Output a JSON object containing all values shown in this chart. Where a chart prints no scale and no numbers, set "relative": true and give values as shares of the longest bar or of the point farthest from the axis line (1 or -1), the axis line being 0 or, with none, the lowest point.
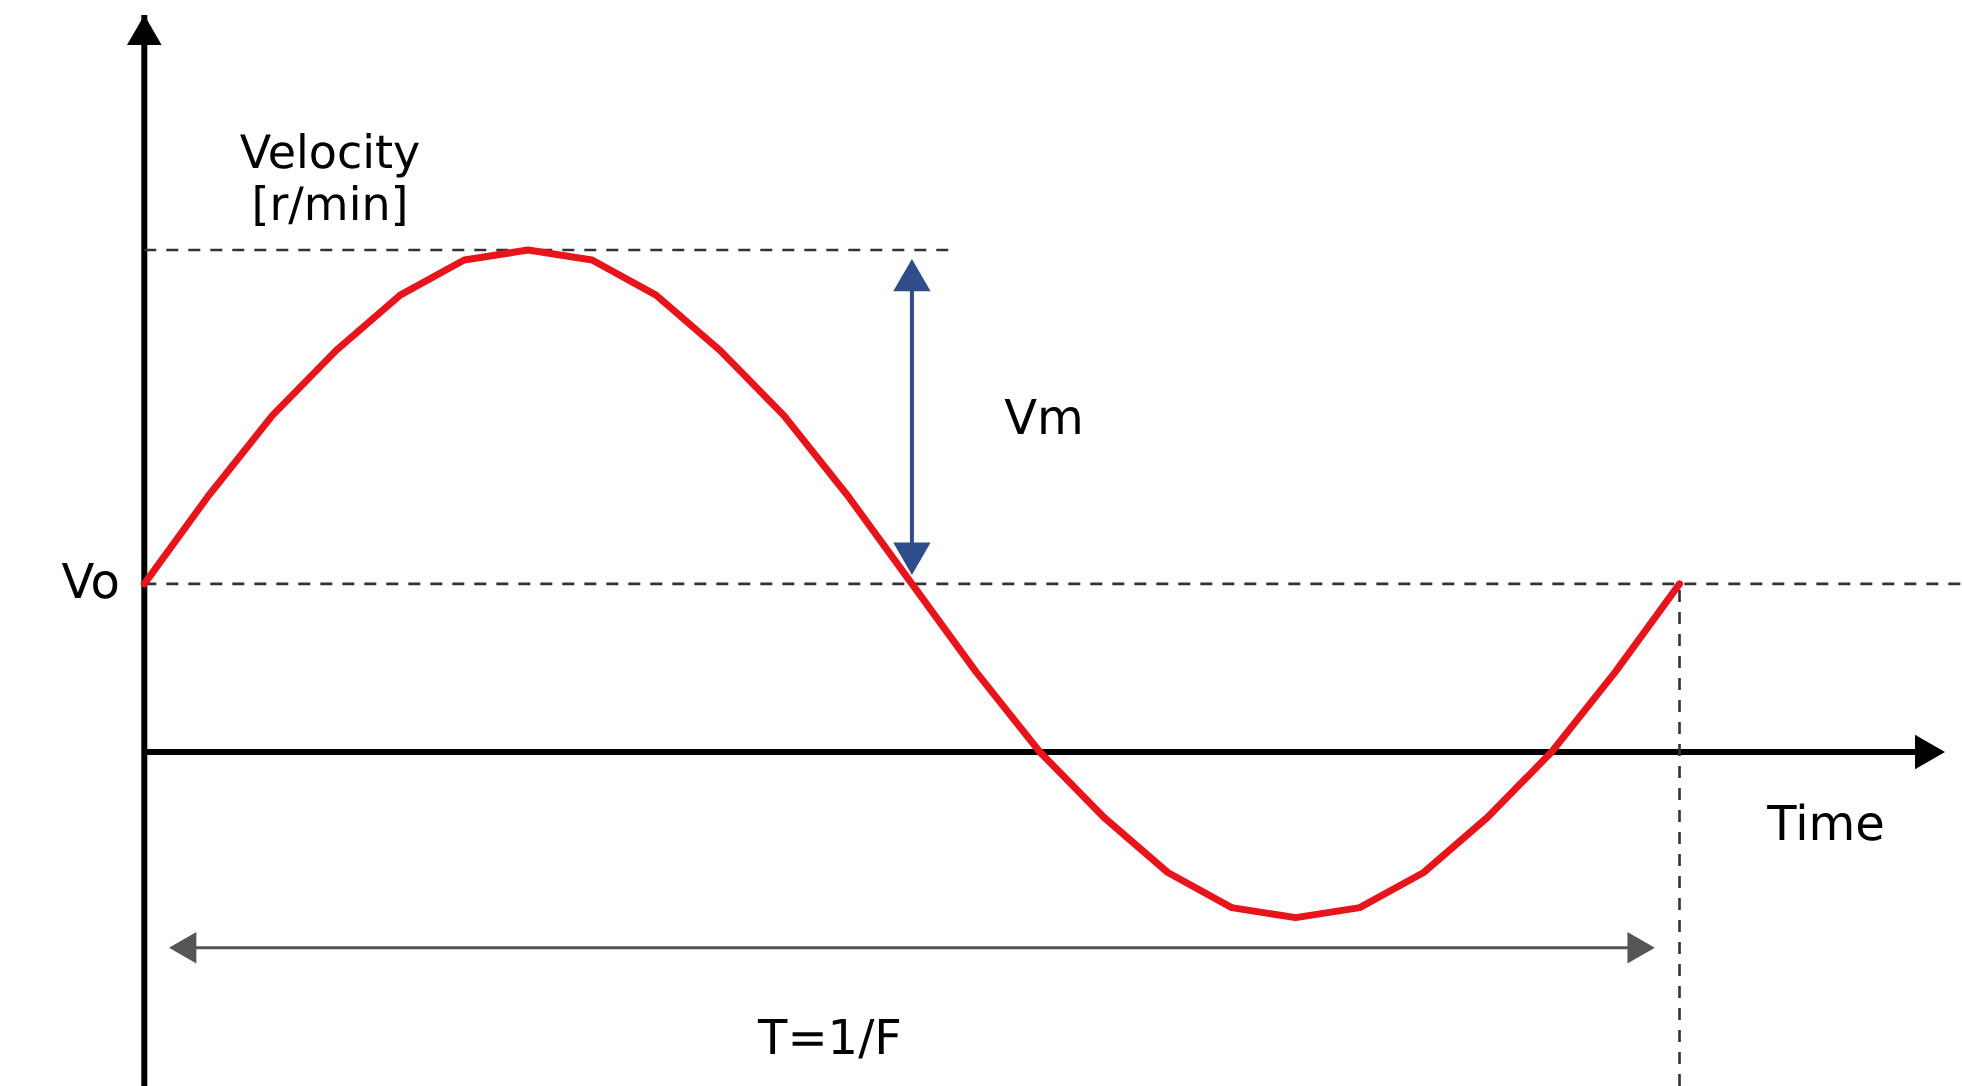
{
  "chart_data": {
    "type": "line",
    "relative": true,
    "xlabel": "Time",
    "ylabel": "Velocity\n[r/min]",
    "categories": [
      null,
      null,
      null,
      null,
      null,
      null,
      null,
      null,
      null,
      null,
      null,
      null,
      null,
      null,
      null,
      null,
      null,
      null,
      null,
      null,
      null,
      null,
      null,
      null,
      null
    ],
    "series": [
      {
        "color": "#e8141b",
        "values": [
          0.335,
          0.51,
          0.67,
          0.8,
          0.91,
          0.98,
          1.0,
          0.98,
          0.91,
          0.8,
          0.67,
          0.51,
          0.335,
          0.16,
          0.0,
          -0.13,
          -0.24,
          -0.31,
          -0.33,
          -0.31,
          -0.24,
          -0.13,
          0.0,
          0.16,
          0.335
        ]
      }
    ],
    "grid": false,
    "line_style": "solid",
    "ref_lines": [
      {
        "axis": "y",
        "value": 0.335,
        "label": "Vo",
        "line_style": "dashed",
        "color": "#333333"
      },
      {
        "axis": "y",
        "value": 1.0,
        "label": null,
        "line_style": "dashed",
        "color": "#333333"
      }
    ],
    "annotations": [
      "Vm",
      "T=1/F"
    ]
  }
}
